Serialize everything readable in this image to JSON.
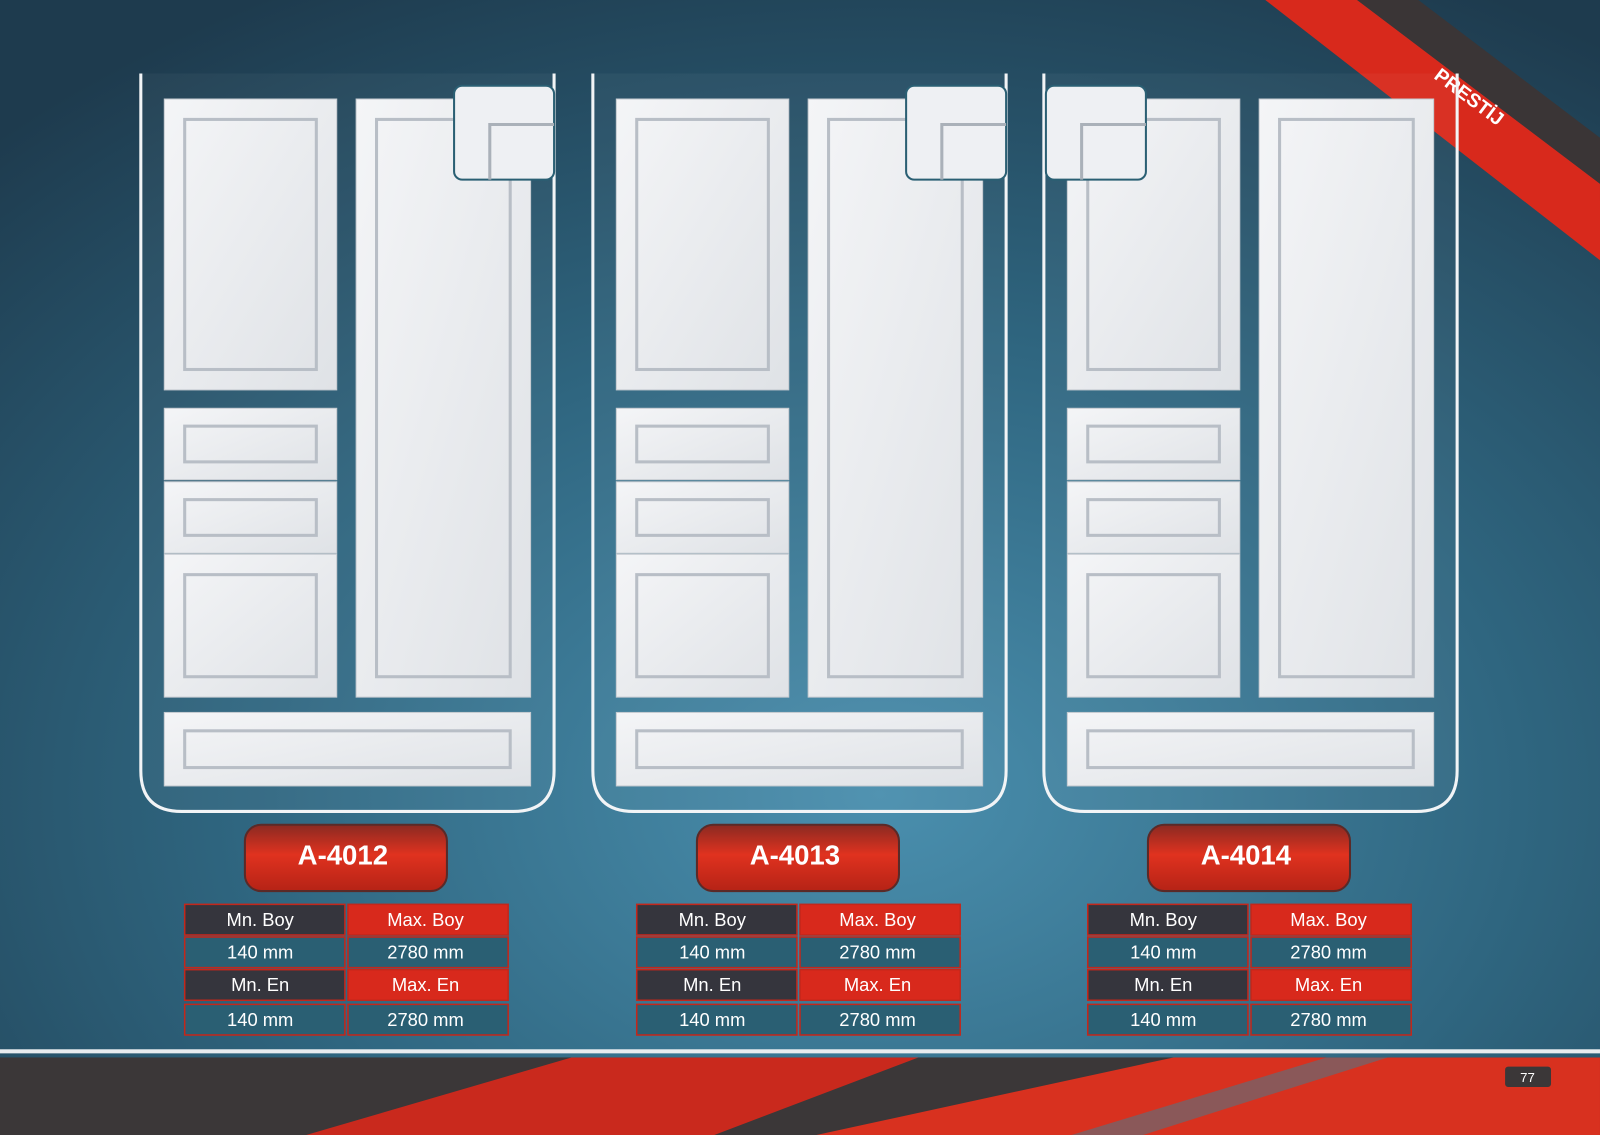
{
  "brand": "PRESTİJ",
  "page_number": "77",
  "products": [
    {
      "code": "A-4012",
      "specs": [
        [
          "Mn. Boy",
          "Max. Boy"
        ],
        [
          "140 mm",
          "2780 mm"
        ],
        [
          "Mn. En",
          "Max. En"
        ],
        [
          "140 mm",
          "2780 mm"
        ]
      ]
    },
    {
      "code": "A-4013",
      "specs": [
        [
          "Mn. Boy",
          "Max. Boy"
        ],
        [
          "140 mm",
          "2780 mm"
        ],
        [
          "Mn. En",
          "Max. En"
        ],
        [
          "140 mm",
          "2780 mm"
        ]
      ]
    },
    {
      "code": "A-4014",
      "specs": [
        [
          "Mn. Boy",
          "Max. Boy"
        ],
        [
          "140 mm",
          "2780 mm"
        ],
        [
          "Mn. En",
          "Max. En"
        ],
        [
          "140 mm",
          "2780 mm"
        ]
      ]
    }
  ]
}
